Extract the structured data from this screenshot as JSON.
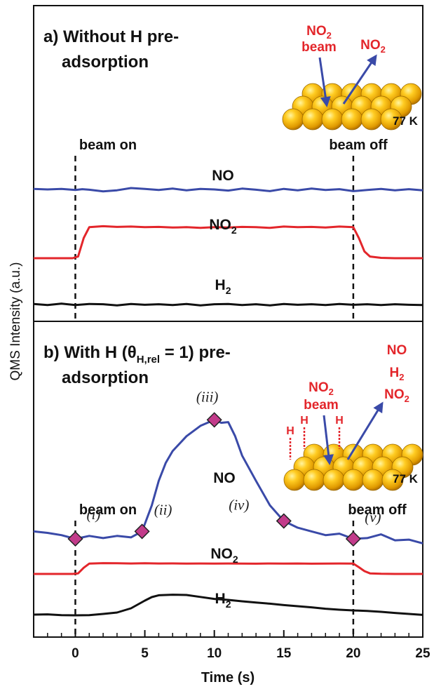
{
  "chart_data": [
    {
      "type": "line",
      "panel": "a",
      "title_line1": "a) Without H pre-",
      "title_line2": "adsorption",
      "x_range": [
        -3,
        25
      ],
      "beam_on_label": "beam on",
      "beam_off_label": "beam off",
      "beam_on_time": 0,
      "beam_off_time": 20,
      "inset": {
        "beam_label_chem": "NO",
        "beam_label_sub": "2",
        "beam_label_word": "beam",
        "out_label_chem": "NO",
        "out_label_sub": "2",
        "temperature": "77 K"
      },
      "series": [
        {
          "name": "NO",
          "color": "#3a4aa8",
          "x": [
            -3,
            -2,
            -1,
            0,
            0.5,
            1,
            2,
            3,
            4,
            5,
            6,
            7,
            8,
            9,
            10,
            11,
            12,
            13,
            14,
            15,
            16,
            17,
            18,
            19,
            20,
            21,
            22,
            23,
            24,
            25
          ],
          "y": [
            0.02,
            0,
            0.02,
            -0.02,
            0.01,
            -0.01,
            -0.07,
            -0.03,
            0.05,
            0.02,
            -0.02,
            0.03,
            -0.03,
            0.02,
            0,
            -0.04,
            0.03,
            -0.01,
            -0.06,
            0.02,
            -0.03,
            0.03,
            -0.02,
            0.01,
            -0.06,
            -0.02,
            0.02,
            -0.03,
            0.01,
            -0.03
          ]
        },
        {
          "name": "NO2",
          "name_chem": "NO",
          "name_sub": "2",
          "color": "#e3262b",
          "x": [
            -3,
            -2,
            -1,
            -0.2,
            0.2,
            0.6,
            1,
            2,
            3,
            4,
            5,
            6,
            7,
            8,
            9,
            10,
            11,
            12,
            13,
            14,
            15,
            16,
            17,
            18,
            19,
            20,
            20.4,
            20.8,
            21.2,
            22,
            23,
            24,
            25
          ],
          "y": [
            0,
            0,
            0,
            0,
            0.05,
            0.6,
            0.92,
            0.95,
            0.93,
            0.94,
            0.92,
            0.93,
            0.91,
            0.92,
            0.9,
            0.92,
            0.91,
            0.93,
            0.92,
            0.9,
            0.94,
            0.92,
            0.93,
            0.91,
            0.94,
            0.92,
            0.6,
            0.2,
            0.05,
            0.01,
            0,
            0,
            0
          ]
        },
        {
          "name": "H2",
          "name_chem": "H",
          "name_sub": "2",
          "color": "#111111",
          "x": [
            -3,
            -2,
            -1,
            0,
            1,
            2,
            3,
            4,
            5,
            6,
            7,
            8,
            9,
            10,
            11,
            12,
            13,
            14,
            15,
            16,
            17,
            18,
            19,
            20,
            21,
            22,
            23,
            24,
            25
          ],
          "y": [
            0.02,
            -0.02,
            0.03,
            -0.02,
            0.02,
            0.01,
            -0.03,
            0.02,
            -0.01,
            0.01,
            -0.02,
            0.02,
            -0.03,
            0.01,
            0.02,
            -0.02,
            0.01,
            -0.03,
            0.02,
            -0.01,
            0.01,
            -0.02,
            0.02,
            -0.01,
            0.01,
            -0.02,
            0.01,
            -0.01,
            -0.02
          ]
        }
      ]
    },
    {
      "type": "line",
      "panel": "b",
      "title_line1_pre": "b) With H (θ",
      "title_sub": "H,rel",
      "title_line1_post": " = 1) pre-",
      "title_line2": "adsorption",
      "x_range": [
        -3,
        25
      ],
      "beam_on_label": "beam on",
      "beam_off_label": "beam off",
      "beam_on_time": 0,
      "beam_off_time": 20,
      "inset": {
        "beam_label_chem": "NO",
        "beam_label_sub": "2",
        "beam_label_word": "beam",
        "out_label_1": "NO",
        "out_label_2_chem": "H",
        "out_label_2_sub": "2",
        "out_label_3_chem": "NO",
        "out_label_3_sub": "2",
        "h_label": "H",
        "temperature": "77 K"
      },
      "markers": [
        {
          "label": "(i)",
          "x": 0,
          "y": 0
        },
        {
          "label": "(ii)",
          "x": 4.8,
          "y": 0.1
        },
        {
          "label": "(iii)",
          "x": 10,
          "y": 1.6
        },
        {
          "label": "(iv)",
          "x": 15,
          "y": 0.24
        },
        {
          "label": "(v)",
          "x": 20,
          "y": 0
        }
      ],
      "series": [
        {
          "name": "NO",
          "color": "#3a4aa8",
          "x": [
            -3,
            -2,
            -1,
            0,
            1,
            2,
            3,
            4,
            4.8,
            5.5,
            6,
            6.5,
            7,
            8,
            9,
            10,
            10.5,
            11,
            11.5,
            12,
            13,
            14,
            15,
            16,
            17,
            18,
            19,
            20,
            21,
            22,
            23,
            24,
            25
          ],
          "y": [
            0.1,
            0.08,
            0.05,
            0,
            0.04,
            0.01,
            0.04,
            0.02,
            0.1,
            0.45,
            0.78,
            1.02,
            1.18,
            1.38,
            1.52,
            1.6,
            1.56,
            1.57,
            1.38,
            1.12,
            0.78,
            0.45,
            0.24,
            0.15,
            0.1,
            0.05,
            0.07,
            0,
            0.01,
            0.06,
            -0.02,
            -0.01,
            -0.06
          ]
        },
        {
          "name": "NO2",
          "name_chem": "NO",
          "name_sub": "2",
          "color": "#e3262b",
          "x": [
            -3,
            -2,
            -1,
            -0.2,
            0.2,
            0.6,
            1,
            2,
            3,
            4,
            5,
            6,
            7,
            8,
            9,
            10,
            11,
            12,
            13,
            14,
            15,
            16,
            17,
            18,
            19,
            20,
            20.4,
            20.8,
            21.2,
            22,
            23,
            24,
            25
          ],
          "y": [
            0,
            0,
            0,
            0,
            0.05,
            0.55,
            0.92,
            0.96,
            0.95,
            0.93,
            0.95,
            0.93,
            0.94,
            0.92,
            0.93,
            0.92,
            0.93,
            0.92,
            0.91,
            0.93,
            0.92,
            0.93,
            0.91,
            0.92,
            0.93,
            0.92,
            0.6,
            0.25,
            0.05,
            0.01,
            0,
            0,
            0
          ]
        },
        {
          "name": "H2",
          "name_chem": "H",
          "name_sub": "2",
          "color": "#111111",
          "x": [
            -3,
            -2,
            -1,
            0,
            1,
            2,
            3,
            4,
            5,
            5.5,
            6,
            7,
            8,
            9,
            10,
            11,
            12,
            13,
            14,
            15,
            16,
            17,
            18,
            19,
            20,
            21,
            22,
            23,
            24,
            25
          ],
          "y": [
            0.1,
            0.12,
            0.06,
            0.05,
            0.06,
            0.15,
            0.25,
            0.55,
            1.1,
            1.35,
            1.48,
            1.52,
            1.5,
            1.36,
            1.22,
            1.15,
            1.05,
            0.96,
            0.88,
            0.78,
            0.7,
            0.62,
            0.52,
            0.45,
            0.4,
            0.36,
            0.3,
            0.22,
            0.15,
            0.08
          ]
        }
      ]
    }
  ],
  "axes": {
    "ylabel": "QMS Intensity (a.u.)",
    "xlabel": "Time (s)",
    "x_ticks": [
      "0",
      "5",
      "10",
      "15",
      "20",
      "25"
    ]
  }
}
